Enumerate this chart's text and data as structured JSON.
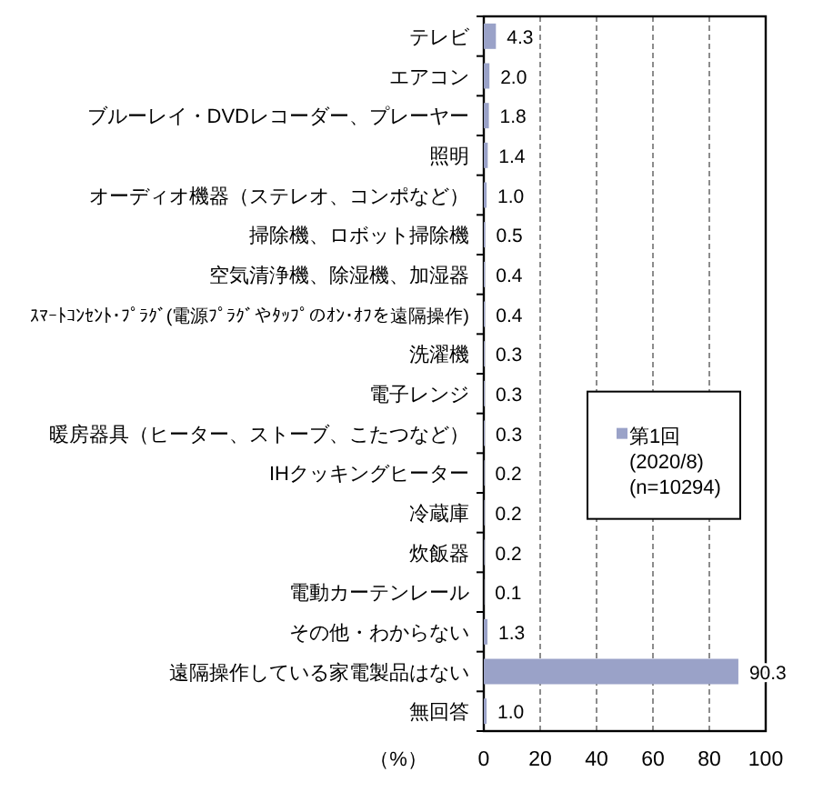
{
  "chart_data": {
    "type": "bar",
    "orientation": "horizontal",
    "categories": [
      "テレビ",
      "エアコン",
      "ブルーレイ・DVDレコーダー、プレーヤー",
      "照明",
      "オーディオ機器（ステレオ、コンポなど）",
      "掃除機、ロボット掃除機",
      "空気清浄機、除湿機、加湿器",
      "ｽﾏｰﾄｺﾝｾﾝﾄ･ﾌﾟﾗｸﾞ(電源ﾌﾟﾗｸﾞやﾀｯﾌﾟのｵﾝ･ｵﾌを遠隔操作)",
      "洗濯機",
      "電子レンジ",
      "暖房器具（ヒーター、ストーブ、こたつなど）",
      "IHクッキングヒーター",
      "冷蔵庫",
      "炊飯器",
      "電動カーテンレール",
      "その他・わからない",
      "遠隔操作している家電製品はない",
      "無回答"
    ],
    "series": [
      {
        "name": "第1回(2020/8)(n=10294)",
        "color": "#9aa2c8",
        "values": [
          4.3,
          2.0,
          1.8,
          1.4,
          1.0,
          0.5,
          0.4,
          0.4,
          0.3,
          0.3,
          0.3,
          0.2,
          0.2,
          0.2,
          0.1,
          1.3,
          90.3,
          1.0
        ],
        "value_labels": [
          "4.3",
          "2.0",
          "1.8",
          "1.4",
          "1.0",
          "0.5",
          "0.4",
          "0.4",
          "0.3",
          "0.3",
          "0.3",
          "0.2",
          "0.2",
          "0.2",
          "0.1",
          "1.3",
          "90.3",
          "1.0"
        ]
      }
    ],
    "xlabel": "（%）",
    "xlim": [
      0,
      100
    ],
    "xticks": [
      0,
      20,
      40,
      60,
      80,
      100
    ],
    "grid": "x",
    "legend": "right"
  }
}
